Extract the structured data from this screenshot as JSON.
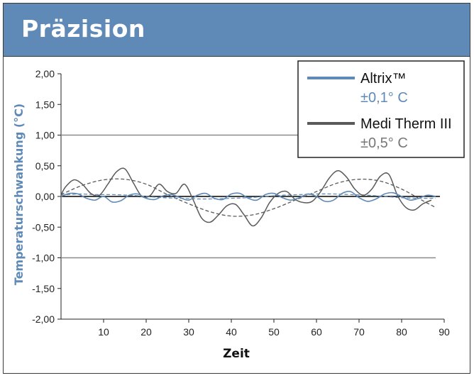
{
  "header": {
    "title": "Präzision"
  },
  "chart_data": {
    "type": "line",
    "xlabel": "Zeit",
    "ylabel": "Temperaturschwankung (°C)",
    "xlim": [
      0,
      90
    ],
    "ylim": [
      -2.0,
      2.0
    ],
    "x_ticks": [
      "10",
      "20",
      "30",
      "40",
      "50",
      "60",
      "70",
      "80",
      "90"
    ],
    "x_tick_values": [
      10,
      20,
      30,
      40,
      50,
      60,
      70,
      80,
      90
    ],
    "y_ticks": [
      "2,00",
      "1,50",
      "1,00",
      "0,50",
      "0,00",
      "-0,50",
      "-1,00",
      "-1,50",
      "-2,00"
    ],
    "y_tick_values": [
      2.0,
      1.5,
      1.0,
      0.5,
      0.0,
      -0.5,
      -1.0,
      -1.5,
      -2.0
    ],
    "reference_lines": [
      {
        "y": 1.0,
        "x_end": 88,
        "color": "#8a8a8a"
      },
      {
        "y": -1.0,
        "x_end": 88,
        "color": "#8a8a8a"
      },
      {
        "y": 0.0,
        "x_end": 89,
        "color": "#000000"
      }
    ],
    "legend": {
      "placement": "top-right",
      "entries": [
        {
          "name": "Altrix™",
          "spec": "±0,1° C",
          "color": "#5f8ab7",
          "spec_color": "#5f8ab7"
        },
        {
          "name": "Medi Therm III",
          "spec": "±0,5° C",
          "color": "#5a5a5a",
          "spec_color": "#777777"
        }
      ]
    },
    "series": [
      {
        "name": "Altrix™",
        "style": "solid",
        "color": "#5f8ab7",
        "x": [
          0,
          2,
          4,
          6,
          8,
          10,
          12,
          14,
          16,
          18,
          20,
          22,
          24,
          26,
          28,
          30,
          32,
          34,
          36,
          38,
          40,
          42,
          44,
          46,
          48,
          50,
          52,
          54,
          56,
          58,
          60,
          62,
          64,
          66,
          68,
          70,
          72,
          74,
          76,
          78,
          80,
          82,
          84,
          86,
          88
        ],
        "y": [
          0.0,
          0.05,
          0.04,
          -0.03,
          -0.06,
          0.0,
          -0.09,
          -0.07,
          0.02,
          0.04,
          -0.03,
          -0.05,
          0.01,
          0.03,
          -0.02,
          -0.06,
          0.02,
          0.05,
          -0.03,
          -0.05,
          0.04,
          0.05,
          -0.03,
          -0.06,
          0.03,
          0.05,
          -0.02,
          -0.06,
          -0.02,
          0.04,
          0.0,
          -0.08,
          -0.06,
          0.05,
          0.08,
          -0.02,
          -0.08,
          -0.04,
          0.04,
          0.06,
          0.0,
          -0.06,
          -0.03,
          0.02,
          0.0
        ]
      },
      {
        "name": "Altrix™ Trend",
        "style": "dashed",
        "color": "#5f8ab7",
        "x": [
          0,
          4,
          8,
          12,
          16,
          20,
          24,
          28,
          32,
          36,
          40,
          44,
          48,
          52,
          56,
          60,
          64,
          68,
          72,
          76,
          80,
          84,
          88
        ],
        "y": [
          0.02,
          0.04,
          0.03,
          0.03,
          0.02,
          0.0,
          -0.02,
          -0.03,
          -0.04,
          -0.04,
          -0.03,
          -0.02,
          0.0,
          0.02,
          0.03,
          0.04,
          0.04,
          0.03,
          0.02,
          0.0,
          -0.02,
          -0.03,
          -0.03
        ]
      },
      {
        "name": "Medi Therm III",
        "style": "solid",
        "color": "#5a5a5a",
        "x": [
          0,
          1,
          3,
          5,
          7,
          9,
          11,
          13,
          15,
          17,
          19,
          21,
          23,
          25,
          27,
          29,
          31,
          33,
          35,
          37,
          39,
          41,
          43,
          45,
          47,
          49,
          51,
          53,
          55,
          57,
          59,
          61,
          63,
          65,
          67,
          69,
          71,
          73,
          75,
          77,
          79,
          81,
          83,
          85,
          87
        ],
        "y": [
          0.02,
          0.15,
          0.27,
          0.2,
          0.05,
          0.02,
          0.2,
          0.4,
          0.45,
          0.22,
          0.0,
          0.02,
          0.2,
          0.08,
          0.05,
          0.2,
          -0.05,
          -0.35,
          -0.42,
          -0.3,
          -0.15,
          -0.13,
          -0.3,
          -0.48,
          -0.35,
          -0.1,
          0.05,
          0.08,
          -0.05,
          -0.1,
          -0.08,
          0.08,
          0.3,
          0.42,
          0.32,
          0.12,
          0.02,
          0.12,
          0.33,
          0.36,
          0.02,
          -0.18,
          -0.22,
          -0.12,
          -0.06
        ]
      },
      {
        "name": "Medi Therm III Trend",
        "style": "dashed",
        "color": "#5a5a5a",
        "x": [
          0,
          5,
          10,
          15,
          20,
          25,
          30,
          35,
          40,
          45,
          50,
          55,
          60,
          65,
          70,
          75,
          80,
          85,
          88
        ],
        "y": [
          0.03,
          0.18,
          0.27,
          0.28,
          0.2,
          0.03,
          -0.12,
          -0.25,
          -0.32,
          -0.3,
          -0.2,
          -0.06,
          0.08,
          0.22,
          0.28,
          0.25,
          0.12,
          -0.07,
          -0.18
        ]
      }
    ]
  }
}
